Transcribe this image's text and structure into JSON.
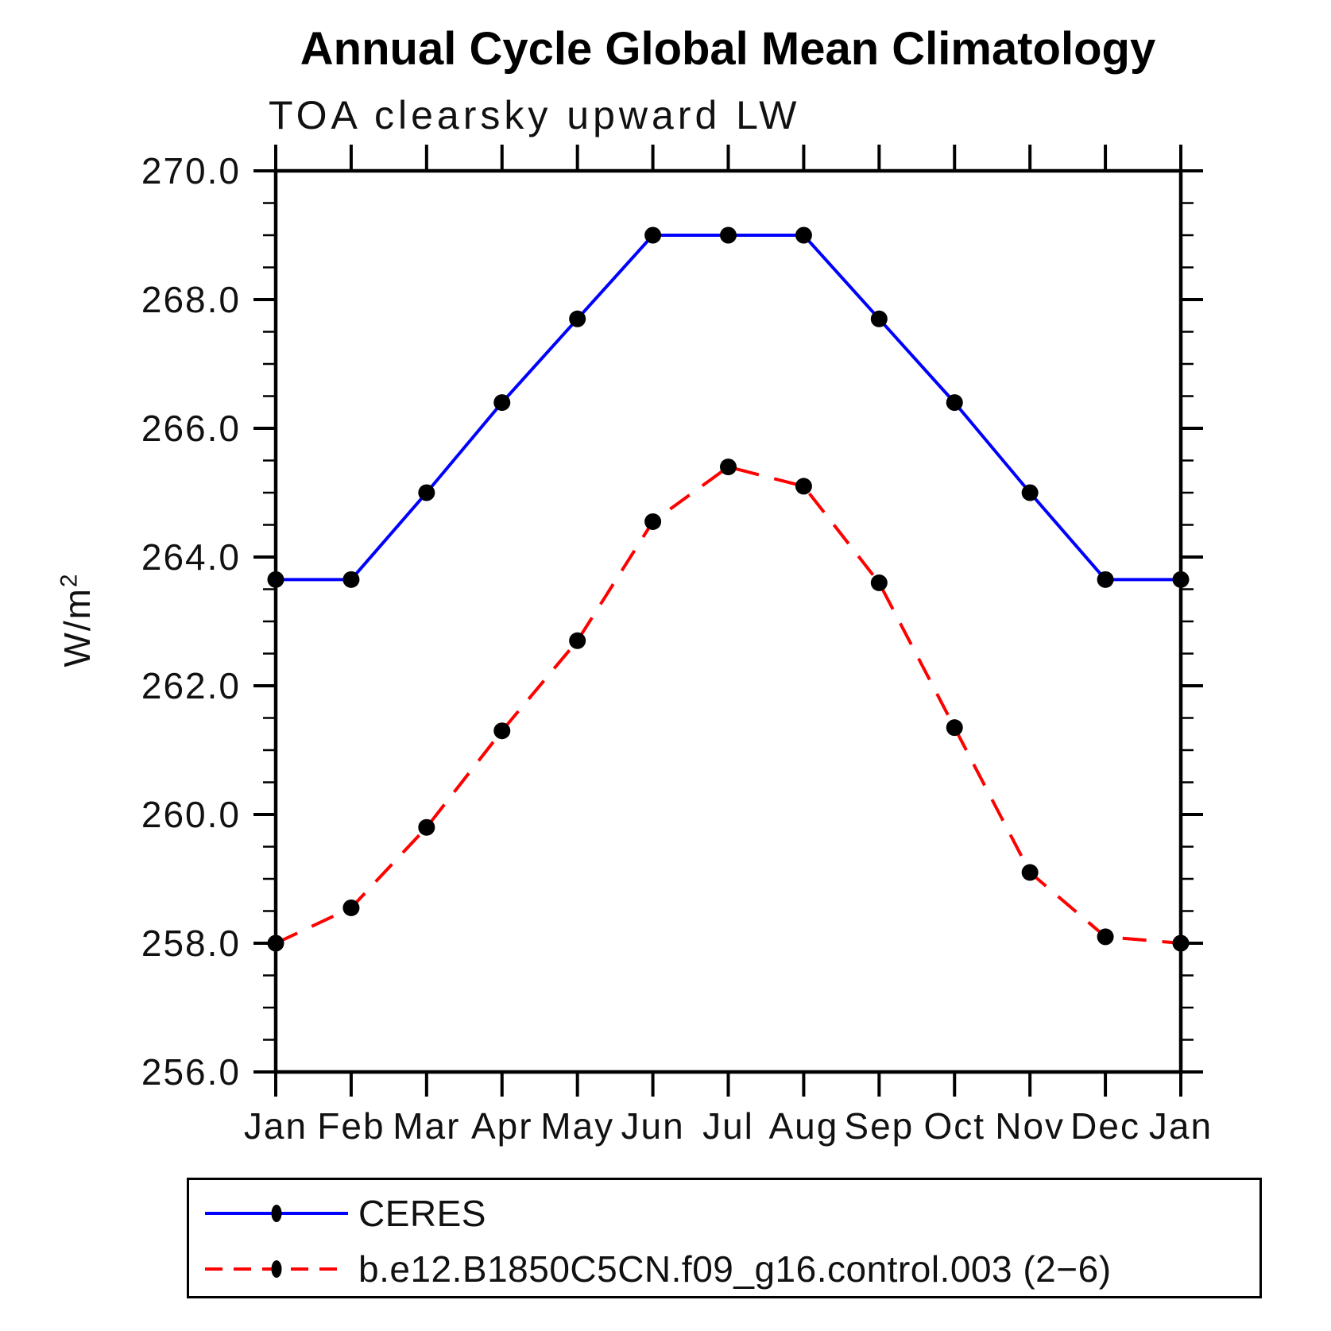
{
  "title": "Annual Cycle Global Mean Climatology",
  "subtitle": "TOA clearsky upward LW",
  "ylabel_base": "W/m",
  "ylabel_exponent": "2",
  "chart_data": {
    "type": "line",
    "title": "Annual Cycle Global Mean Climatology",
    "subtitle": "TOA clearsky upward LW",
    "ylabel": "W/m²",
    "xlabel": "",
    "categories": [
      "Jan",
      "Feb",
      "Mar",
      "Apr",
      "May",
      "Jun",
      "Jul",
      "Aug",
      "Sep",
      "Oct",
      "Nov",
      "Dec",
      "Jan"
    ],
    "series": [
      {
        "name": "CERES",
        "color": "#0000ff",
        "style": "solid",
        "marker": "circle",
        "marker_color": "#000000",
        "values": [
          263.65,
          263.65,
          265.0,
          266.4,
          267.7,
          269.0,
          269.0,
          269.0,
          267.7,
          266.4,
          265.0,
          263.65,
          263.65
        ]
      },
      {
        "name": "b.e12.B1850C5CN.f09_g16.control.003 (2−6)",
        "color": "#ff0000",
        "style": "dashed",
        "marker": "circle",
        "marker_color": "#000000",
        "values": [
          258.0,
          258.55,
          259.8,
          261.3,
          262.7,
          264.55,
          265.4,
          265.1,
          263.6,
          261.35,
          259.1,
          258.1,
          258.0
        ]
      }
    ],
    "ylim": [
      256.0,
      270.0
    ],
    "ytick_step": 2.0,
    "y_minor_step": 0.5,
    "ytick_labels": [
      "256.0",
      "258.0",
      "260.0",
      "262.0",
      "264.0",
      "266.0",
      "268.0",
      "270.0"
    ],
    "grid": false,
    "legend_position": "bottom-box"
  }
}
